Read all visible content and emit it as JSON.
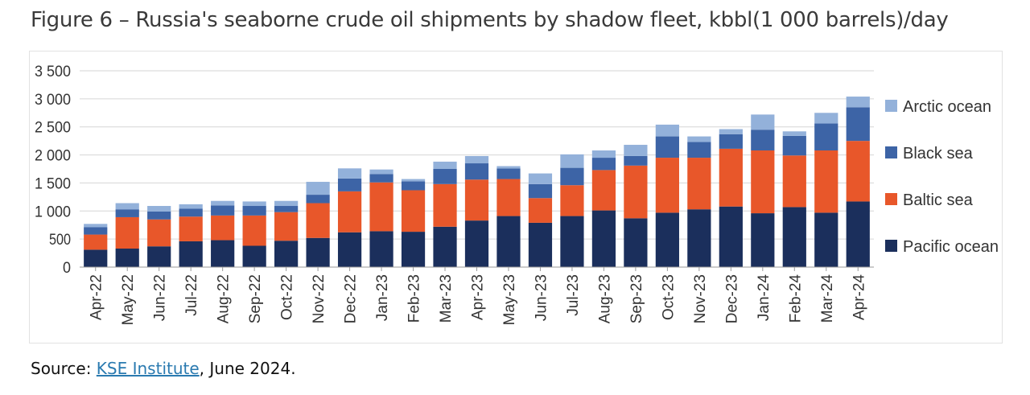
{
  "title": "Figure 6 – Russia's seaborne crude oil shipments by shadow fleet, kbbl(1 000 barrels)/day",
  "source": {
    "prefix": "Source: ",
    "link_text": "KSE Institute",
    "suffix": ", June 2024."
  },
  "colors": {
    "pacific": "#1b2f5c",
    "baltic": "#e8572a",
    "black": "#3d64a6",
    "arctic": "#93b1da",
    "grid": "#d6d6d6",
    "axis": "#333333"
  },
  "chart_data": {
    "type": "bar",
    "stacked": true,
    "title": "Figure 6 – Russia's seaborne crude oil shipments by shadow fleet, kbbl(1 000 barrels)/day",
    "xlabel": "",
    "ylabel": "",
    "ylim": [
      0,
      3500
    ],
    "yticks": [
      0,
      500,
      1000,
      1500,
      2000,
      2500,
      3000,
      3500
    ],
    "ytick_labels": [
      "0",
      "500",
      "1 000",
      "1 500",
      "2 000",
      "2 500",
      "3 000",
      "3 500"
    ],
    "legend": "right",
    "grid": true,
    "categories": [
      "Apr-22",
      "May-22",
      "Jun-22",
      "Jul-22",
      "Aug-22",
      "Sep-22",
      "Oct-22",
      "Nov-22",
      "Dec-22",
      "Jan-23",
      "Feb-23",
      "Mar-23",
      "Apr-23",
      "May-23",
      "Jun-23",
      "Jul-23",
      "Aug-23",
      "Sep-23",
      "Oct-23",
      "Nov-23",
      "Dec-23",
      "Jan-24",
      "Feb-24",
      "Mar-24",
      "Apr-24"
    ],
    "series": [
      {
        "name": "Pacific ocean",
        "color": "#1b2f5c",
        "values": [
          310,
          330,
          370,
          460,
          480,
          380,
          470,
          520,
          620,
          640,
          630,
          720,
          830,
          910,
          790,
          910,
          1010,
          870,
          970,
          1030,
          1080,
          960,
          1070,
          970,
          1170
        ]
      },
      {
        "name": "Baltic sea",
        "color": "#e8572a",
        "values": [
          270,
          560,
          480,
          440,
          440,
          540,
          510,
          620,
          730,
          870,
          740,
          760,
          730,
          660,
          440,
          550,
          720,
          940,
          980,
          920,
          1030,
          1120,
          920,
          1110,
          1080
        ]
      },
      {
        "name": "Black sea",
        "color": "#3d64a6",
        "values": [
          130,
          140,
          140,
          140,
          180,
          170,
          110,
          150,
          230,
          150,
          160,
          270,
          290,
          190,
          250,
          310,
          220,
          170,
          380,
          280,
          260,
          370,
          350,
          480,
          600
        ]
      },
      {
        "name": "Arctic ocean",
        "color": "#93b1da",
        "values": [
          60,
          110,
          100,
          80,
          80,
          80,
          90,
          230,
          180,
          80,
          40,
          130,
          130,
          40,
          190,
          240,
          130,
          200,
          210,
          100,
          90,
          270,
          80,
          190,
          190
        ]
      }
    ],
    "legend_order": [
      "Arctic ocean",
      "Black sea",
      "Baltic sea",
      "Pacific ocean"
    ]
  }
}
